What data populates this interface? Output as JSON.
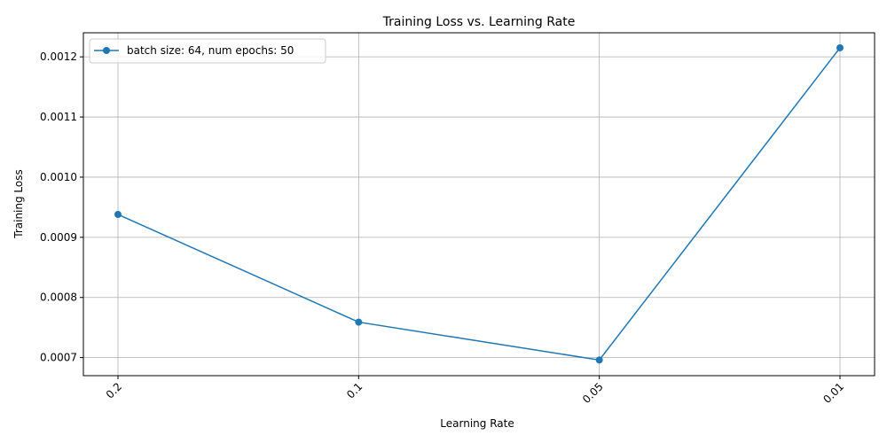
{
  "chart_data": {
    "type": "line",
    "title": "Training Loss vs. Learning Rate",
    "xlabel": "Learning Rate",
    "ylabel": "Training Loss",
    "categories": [
      "0.2",
      "0.1",
      "0.05",
      "0.01"
    ],
    "series": [
      {
        "name": "batch size: 64, num epochs: 50",
        "values": [
          0.000938,
          0.000759,
          0.000696,
          0.001215
        ],
        "color": "#1f77b4",
        "marker": "circle"
      }
    ],
    "yticks": [
      0.0007,
      0.0008,
      0.0009,
      0.001,
      0.0011,
      0.0012
    ],
    "ytick_labels": [
      "0.0007",
      "0.0008",
      "0.0009",
      "0.0010",
      "0.0011",
      "0.0012"
    ],
    "ylim": [
      0.00067,
      0.00124
    ],
    "grid": true,
    "legend_position": "top-left",
    "xtick_rotation": "45"
  }
}
